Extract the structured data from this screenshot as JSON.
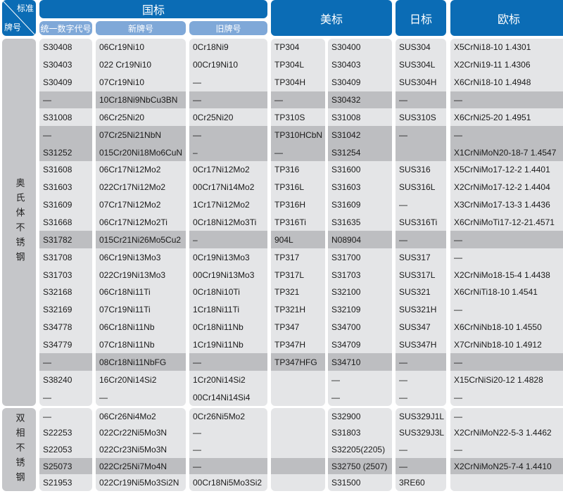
{
  "header": {
    "corner_top": "标准",
    "corner_bottom": "牌号",
    "gb": "国标",
    "gb_sub": [
      "统一数字代号",
      "新牌号",
      "旧牌号"
    ],
    "us": "美标",
    "jp": "日标",
    "eu": "欧标"
  },
  "colors": {
    "header_blue": "#0b6cb5",
    "subheader_blue": "#7fa8d8",
    "cell_bg": "#e4e5e7",
    "highlight_bg": "#bdbec1"
  },
  "groups": [
    {
      "label": "奥氏体不锈钢",
      "highlighted_rows": [
        3,
        5,
        6,
        11,
        18
      ],
      "rows": [
        [
          "S30408",
          "06Cr19Ni10",
          "0Cr18Ni9",
          "TP304",
          "S30400",
          "SUS304",
          "X5CrNi18-10 1.4301"
        ],
        [
          "S30403",
          "022 Cr19Ni10",
          "00Cr19Ni10",
          "TP304L",
          "S30403",
          "SUS304L",
          "X2CrNi19-11  1.4306"
        ],
        [
          "S30409",
          "07Cr19Ni10",
          "—",
          "TP304H",
          "S30409",
          "SUS304H",
          "X6CrNi18-10  1.4948"
        ],
        [
          "—",
          "10Cr18Ni9NbCu3BN",
          "—",
          "—",
          "S30432",
          "—",
          "—"
        ],
        [
          "S31008",
          "06Cr25Ni20",
          "0Cr25Ni20",
          "TP310S",
          "S31008",
          "SUS310S",
          "X6CrNi25-20 1.4951"
        ],
        [
          "—",
          "07Cr25Ni21NbN",
          "—",
          "TP310HCbN",
          "S31042",
          "—",
          "—"
        ],
        [
          "S31252",
          "015Cr20Ni18Mo6CuN",
          "–",
          "—",
          "S31254",
          "",
          "X1CrNiMoN20-18-7 1.4547"
        ],
        [
          "S31608",
          "06Cr17Ni12Mo2",
          "0Cr17Ni12Mo2",
          "TP316",
          "S31600",
          "SUS316",
          "X5CrNiMo17-12-2 1.4401"
        ],
        [
          "S31603",
          "022Cr17Ni12Mo2",
          "00Cr17Ni14Mo2",
          "TP316L",
          "S31603",
          "SUS316L",
          "X2CrNiMo17-12-2 1.4404"
        ],
        [
          "S31609",
          "07Cr17Ni12Mo2",
          "1Cr17Ni12Mo2",
          "TP316H",
          "S31609",
          "—",
          "X3CrNiMo17-13-3 1.4436"
        ],
        [
          "S31668",
          "06Cr17Ni12Mo2Ti",
          "0Cr18Ni12Mo3Ti",
          "TP316Ti",
          "S31635",
          "SUS316Ti",
          "X6CrNiMoTi17-12-21.4571"
        ],
        [
          "S31782",
          "015Cr21Ni26Mo5Cu2",
          "–",
          "904L",
          "N08904",
          "—",
          "—"
        ],
        [
          "S31708",
          "06Cr19Ni13Mo3",
          "0Cr19Ni13Mo3",
          "TP317",
          "S31700",
          "SUS317",
          "—"
        ],
        [
          "S31703",
          "022Cr19Ni13Mo3",
          "00Cr19Ni13Mo3",
          "TP317L",
          "S31703",
          "SUS317L",
          "X2CrNiMo18-15-4 1.4438"
        ],
        [
          "S32168",
          "06Cr18Ni11Ti",
          "0Cr18Ni10Ti",
          "TP321",
          "S32100",
          "SUS321",
          "X6CrNiTi18-10 1.4541"
        ],
        [
          "S32169",
          "07Cr19Ni11Ti",
          "1Cr18Ni11Ti",
          "TP321H",
          "S32109",
          "SUS321H",
          "—"
        ],
        [
          "S34778",
          "06Cr18Ni11Nb",
          "0Cr18Ni11Nb",
          "TP347",
          "S34700",
          "SUS347",
          "X6CrNiNb18-10 1.4550"
        ],
        [
          "S34779",
          "07Cr18Ni11Nb",
          "1Cr19Ni11Nb",
          "TP347H",
          "S34709",
          "SUS347H",
          "X7CrNiNb18-10 1.4912"
        ],
        [
          "—",
          "08Cr18Ni11NbFG",
          "—",
          "TP347HFG",
          "S34710",
          "—",
          "—"
        ],
        [
          "S38240",
          "16Cr20Ni14Si2",
          "1Cr20Ni14Si2",
          "",
          "—",
          "—",
          "X15CrNiSi20-12 1.4828"
        ],
        [
          "—",
          "—",
          "00Cr14Ni14Si4",
          "",
          "—",
          "—",
          "—"
        ]
      ]
    },
    {
      "label": "双相不锈钢",
      "highlighted_rows": [
        3
      ],
      "rows": [
        [
          "—",
          "06Cr26Ni4Mo2",
          "0Cr26Ni5Mo2",
          "",
          "S32900",
          "SUS329J1L",
          "—"
        ],
        [
          "S22253",
          "022Cr22Ni5Mo3N",
          "—",
          "",
          "S31803",
          "SUS329J3L",
          "X2CrNiMoN22-5-3 1.4462"
        ],
        [
          "S22053",
          "022Cr23Ni5Mo3N",
          "—",
          "",
          "S32205(2205)",
          "—",
          "—"
        ],
        [
          "S25073",
          "022Cr25Ni7Mo4N",
          "—",
          "",
          "S32750 (2507)",
          "—",
          "X2CrNiMoN25-7-4 1.4410"
        ],
        [
          "S21953",
          "022Cr19Ni5Mo3Si2N",
          "00Cr18Ni5Mo3Si2",
          "",
          "S31500",
          "3RE60",
          ""
        ]
      ]
    }
  ]
}
